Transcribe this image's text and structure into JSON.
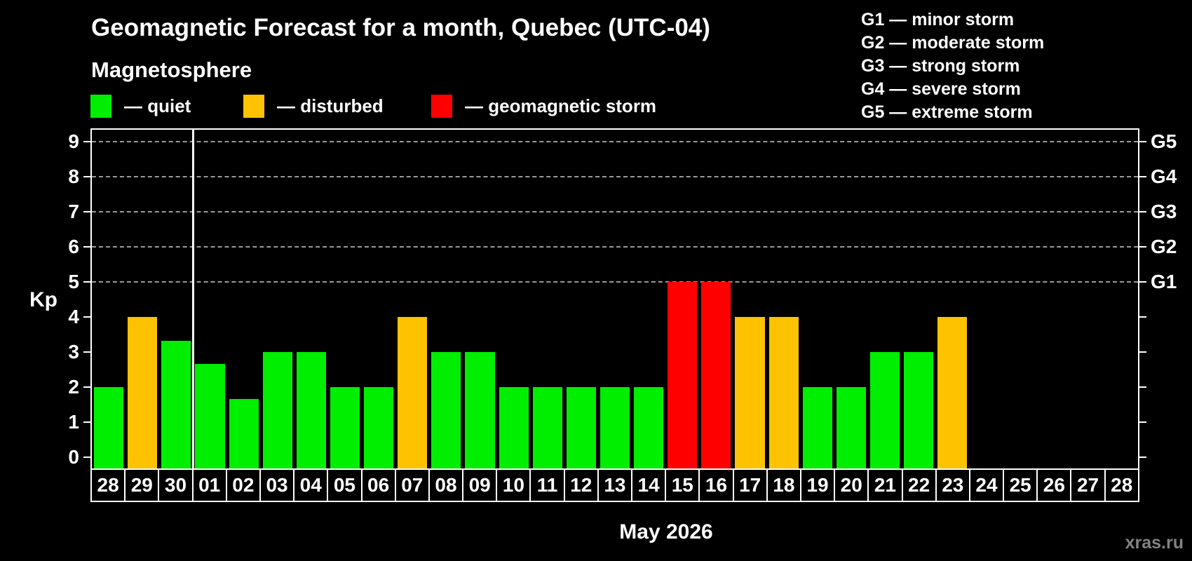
{
  "title": "Geomagnetic Forecast for a month, Quebec (UTC-04)",
  "subtitle": "Magnetosphere",
  "legend": {
    "items": [
      {
        "label": "— quiet",
        "status": "quiet",
        "color": "#00ee00"
      },
      {
        "label": "— disturbed",
        "status": "disturbed",
        "color": "#ffc200"
      },
      {
        "label": "— geomagnetic storm",
        "status": "storm",
        "color": "#ff0000"
      }
    ]
  },
  "storm_scale_legend": [
    "G1 — minor storm",
    "G2 — moderate storm",
    "G3 — strong storm",
    "G4 — severe storm",
    "G5 — extreme storm"
  ],
  "watermark": "xras.ru",
  "chart_data": {
    "type": "bar",
    "title": "Geomagnetic Forecast for a month, Quebec (UTC-04)",
    "xlabel": "May 2026",
    "ylabel": "Kp",
    "ylim": [
      0,
      9
    ],
    "yticks": [
      0,
      1,
      2,
      3,
      4,
      5,
      6,
      7,
      8,
      9
    ],
    "gridlines_at": [
      5,
      6,
      7,
      8,
      9
    ],
    "grid": "dashed, horizontal, only at Kp 5-9",
    "right_axis_labels": [
      {
        "value": 5,
        "label": "G1"
      },
      {
        "value": 6,
        "label": "G2"
      },
      {
        "value": 7,
        "label": "G3"
      },
      {
        "value": 8,
        "label": "G4"
      },
      {
        "value": 9,
        "label": "G5"
      }
    ],
    "categories": [
      "28",
      "29",
      "30",
      "01",
      "02",
      "03",
      "04",
      "05",
      "06",
      "07",
      "08",
      "09",
      "10",
      "11",
      "12",
      "13",
      "14",
      "15",
      "16",
      "17",
      "18",
      "19",
      "20",
      "21",
      "22",
      "23",
      "24",
      "25",
      "26",
      "27",
      "28"
    ],
    "month_separator_after_index": 2,
    "values": [
      2,
      4,
      3.33,
      2.67,
      1.67,
      3,
      3,
      2,
      2,
      4,
      3,
      3,
      2,
      2,
      2,
      2,
      2,
      5,
      5,
      4,
      4,
      2,
      2,
      3,
      3,
      4,
      null,
      null,
      null,
      null,
      null
    ],
    "statuses": [
      "quiet",
      "disturbed",
      "quiet",
      "quiet",
      "quiet",
      "quiet",
      "quiet",
      "quiet",
      "quiet",
      "disturbed",
      "quiet",
      "quiet",
      "quiet",
      "quiet",
      "quiet",
      "quiet",
      "quiet",
      "storm",
      "storm",
      "disturbed",
      "disturbed",
      "quiet",
      "quiet",
      "quiet",
      "quiet",
      "disturbed",
      null,
      null,
      null,
      null,
      null
    ],
    "colors": {
      "quiet": "#00ee00",
      "disturbed": "#ffc200",
      "storm": "#ff0000"
    }
  }
}
